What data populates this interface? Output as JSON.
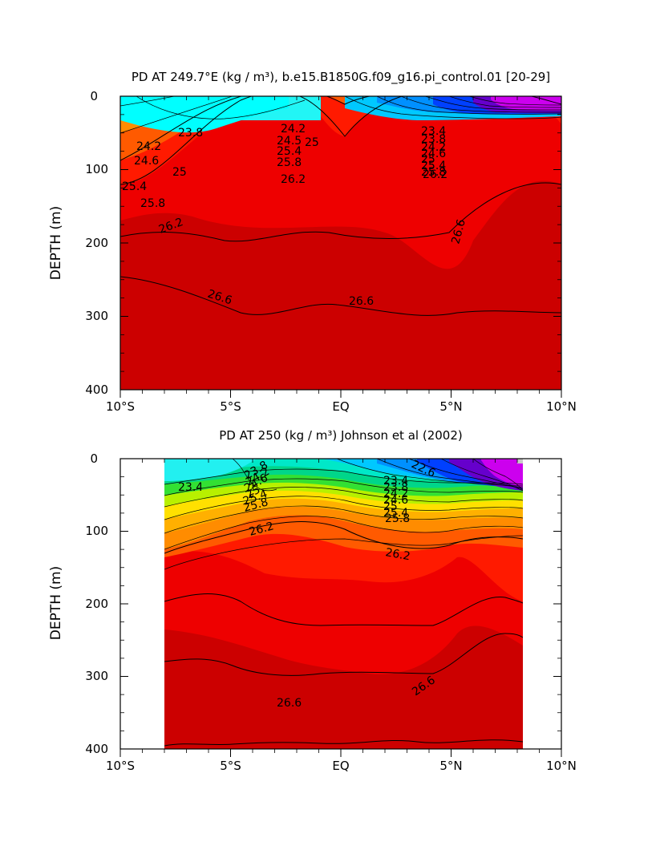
{
  "chart_data": [
    {
      "type": "contour",
      "title": "PD AT 249.7°E (kg / m³), b.e15.B1850G.f09_g16.pi_control.01 [20-29]",
      "ylabel": "DEPTH (m)",
      "xlabel": "",
      "x_ticks": [
        "10°S",
        "5°S",
        "EQ",
        "5°N",
        "10°N"
      ],
      "y_ticks": [
        "0",
        "100",
        "200",
        "300",
        "400"
      ],
      "xlim": [
        -10,
        10
      ],
      "ylim": [
        400,
        0
      ],
      "grid": false,
      "contour_labels": [
        "23.8",
        "24.2",
        "24.6",
        "25",
        "25.4",
        "25.8",
        "26.2",
        "24.2",
        "24.5",
        "25",
        "25.4",
        "25.8",
        "26.2",
        "23.4",
        "23.8",
        "24.2",
        "24.6",
        "25",
        "25.4",
        "25.8",
        "26.2",
        "26.6",
        "26.6",
        "26.6"
      ]
    },
    {
      "type": "contour",
      "title": "PD AT 250 (kg / m³) Johnson et al (2002)",
      "ylabel": "DEPTH (m)",
      "xlabel": "",
      "x_ticks": [
        "10°S",
        "5°S",
        "EQ",
        "5°N",
        "10°N"
      ],
      "y_ticks": [
        "0",
        "100",
        "200",
        "300",
        "400"
      ],
      "xlim": [
        -10,
        10
      ],
      "ylim": [
        400,
        0
      ],
      "grid": false,
      "contour_labels": [
        "23.4",
        "23.8",
        "24.2",
        "24.6",
        "25",
        "25.4",
        "25.8",
        "26.2",
        "22.6",
        "23.4",
        "23.8",
        "24.2",
        "24.6",
        "25",
        "25.4",
        "25.8",
        "26.2",
        "26.6",
        "26.6"
      ]
    }
  ]
}
